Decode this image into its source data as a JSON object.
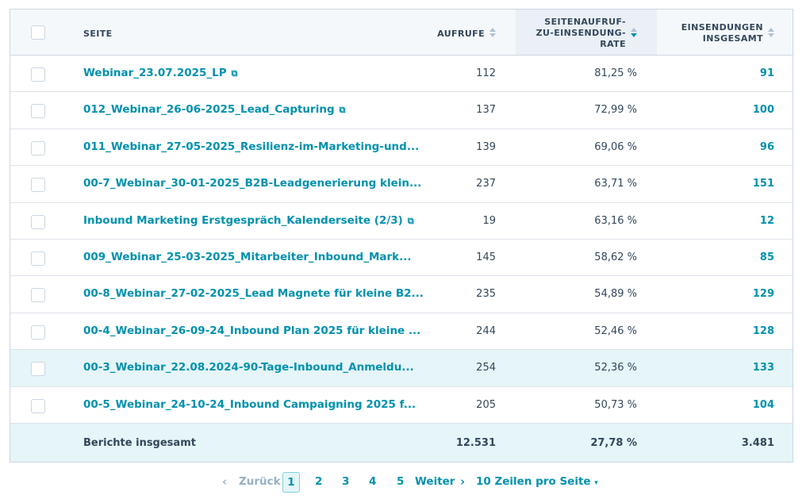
{
  "header": {
    "col_page": "SEITE",
    "col_views": "AUFRUFE",
    "col_rate_1": "SEITENAUFRUF-",
    "col_rate_2": "ZU-EINSENDUNG-",
    "col_rate_3": "RATE",
    "col_subs_1": "EINSENDUNGEN",
    "col_subs_2": "INSGESAMT"
  },
  "rows": [
    {
      "page": "Webinar_23.07.2025_LP",
      "external": true,
      "views": "112",
      "rate": "81,25 %",
      "subs": "91"
    },
    {
      "page": "012_Webinar_26-06-2025_Lead_Capturing",
      "external": true,
      "views": "137",
      "rate": "72,99 %",
      "subs": "100"
    },
    {
      "page": "011_Webinar_27-05-2025_Resilienz-im-Marketing-und...",
      "external": false,
      "views": "139",
      "rate": "69,06 %",
      "subs": "96"
    },
    {
      "page": "00-7_Webinar_30-01-2025_B2B-Leadgenerierung klein...",
      "external": false,
      "views": "237",
      "rate": "63,71 %",
      "subs": "151"
    },
    {
      "page": "Inbound Marketing Erstgespräch_Kalenderseite (2/3)",
      "external": true,
      "views": "19",
      "rate": "63,16 %",
      "subs": "12"
    },
    {
      "page": "009_Webinar_25-03-2025_Mitarbeiter_Inbound_Mark...",
      "external": false,
      "views": "145",
      "rate": "58,62 %",
      "subs": "85"
    },
    {
      "page": "00-8_Webinar_27-02-2025_Lead Magnete für kleine B2...",
      "external": false,
      "views": "235",
      "rate": "54,89 %",
      "subs": "129"
    },
    {
      "page": "00-4_Webinar_26-09-24_Inbound Plan 2025 für kleine ...",
      "external": false,
      "views": "244",
      "rate": "52,46 %",
      "subs": "128"
    },
    {
      "page": "00-3_Webinar_22.08.2024-90-Tage-Inbound_Anmeldu...",
      "external": false,
      "views": "254",
      "rate": "52,36 %",
      "subs": "133",
      "highlighted": true
    },
    {
      "page": "00-5_Webinar_24-10-24_Inbound Campaigning 2025 f...",
      "external": false,
      "views": "205",
      "rate": "50,73 %",
      "subs": "104"
    }
  ],
  "total": {
    "label": "Berichte insgesamt",
    "views": "12.531",
    "rate": "27,78 %",
    "subs": "3.481"
  },
  "pager": {
    "prev": "Zurück",
    "pages": [
      "1",
      "2",
      "3",
      "4",
      "5"
    ],
    "current": "1",
    "next": "Weiter",
    "per_page": "10 Zeilen pro Seite"
  },
  "colors": {
    "accent": "#0091ae",
    "text": "#33475b",
    "highlight": "#e5f5f8"
  }
}
